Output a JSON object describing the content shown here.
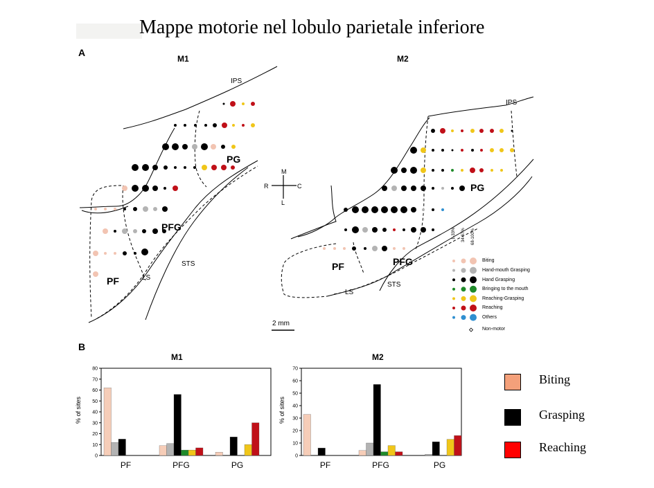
{
  "title": "Mappe motorie nel lobulo parietale inferiore",
  "panel_a": {
    "letter": "A",
    "m1": {
      "name": "M1",
      "regions": [
        "PF",
        "PFG",
        "PG"
      ],
      "sulci": [
        "IPS",
        "STS",
        "LS"
      ]
    },
    "m2": {
      "name": "M2",
      "regions": [
        "PF",
        "PFG",
        "PG"
      ],
      "sulci": [
        "IPS",
        "STS",
        "LS"
      ]
    },
    "compass": {
      "M": "M",
      "L": "L",
      "R": "R",
      "C": "C"
    },
    "scale_bar": "2 mm",
    "dot_legend": {
      "size_headers": [
        "1-33%",
        "34-67%",
        "68-100%"
      ],
      "items": [
        {
          "label": "Biting",
          "color": "#f2c4b2"
        },
        {
          "label": "Hand-mouth Grasping",
          "color": "#b3b3b3"
        },
        {
          "label": "Hand Grasping",
          "color": "#000000"
        },
        {
          "label": "Bringing to the mouth",
          "color": "#1f8a2a"
        },
        {
          "label": "Reaching-Grasping",
          "color": "#f0c619"
        },
        {
          "label": "Reaching",
          "color": "#c01018"
        },
        {
          "label": "Others",
          "color": "#2f8fd0"
        }
      ],
      "non_motor": "Non-motor"
    }
  },
  "panel_b": {
    "letter": "B"
  },
  "chart_data": [
    {
      "type": "bar",
      "title": "M1",
      "categories": [
        "PF",
        "PFG",
        "PG"
      ],
      "ylabel": "% of sites",
      "ylim": [
        0,
        80
      ],
      "yticks": [
        0,
        10,
        20,
        30,
        40,
        50,
        60,
        70,
        80
      ],
      "series": [
        {
          "color": "#f6cdb8",
          "values": [
            62,
            9,
            3
          ]
        },
        {
          "color": "#b3b3b3",
          "values": [
            12,
            11,
            0
          ]
        },
        {
          "color": "#000000",
          "values": [
            15,
            56,
            17
          ]
        },
        {
          "color": "#1f8a2a",
          "values": [
            0,
            5,
            0
          ]
        },
        {
          "color": "#f0c619",
          "values": [
            0,
            5,
            10
          ]
        },
        {
          "color": "#c01018",
          "values": [
            0,
            7,
            30
          ]
        }
      ]
    },
    {
      "type": "bar",
      "title": "M2",
      "categories": [
        "PF",
        "PFG",
        "PG"
      ],
      "ylabel": "% of sites",
      "ylim": [
        0,
        70
      ],
      "yticks": [
        0,
        10,
        20,
        30,
        40,
        50,
        60,
        70
      ],
      "series": [
        {
          "color": "#f6cdb8",
          "values": [
            33,
            4,
            0
          ]
        },
        {
          "color": "#b3b3b3",
          "values": [
            0,
            10,
            1
          ]
        },
        {
          "color": "#000000",
          "values": [
            6,
            57,
            11
          ]
        },
        {
          "color": "#1f8a2a",
          "values": [
            0,
            3,
            0
          ]
        },
        {
          "color": "#f0c619",
          "values": [
            0,
            8,
            13
          ]
        },
        {
          "color": "#c01018",
          "values": [
            0,
            3,
            16
          ]
        }
      ]
    }
  ],
  "category_legend": [
    {
      "label": "Biting",
      "color": "#f4a07a"
    },
    {
      "label": "Grasping",
      "color": "#000000"
    },
    {
      "label": "Reaching",
      "color": "#ff0000"
    }
  ]
}
